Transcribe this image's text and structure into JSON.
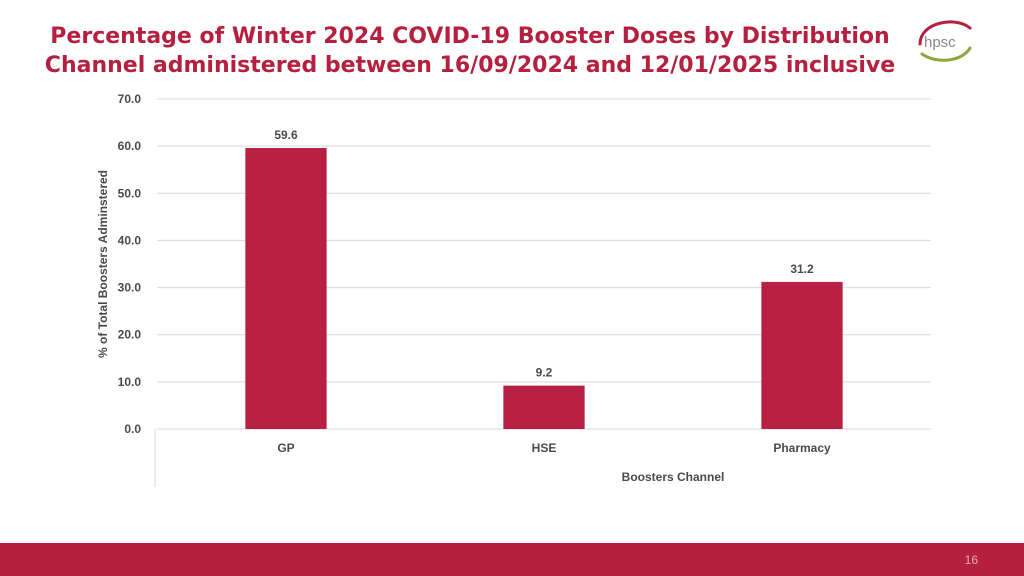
{
  "header": {
    "title_line1": "Percentage of Winter 2024 COVID-19 Booster Doses by Distribution",
    "title_line2": "Channel administered between 16/09/2024 and 12/01/2025 inclusive",
    "logo_text": "hpsc"
  },
  "footer": {
    "page_number": "16"
  },
  "colors": {
    "accent": "#b5203f",
    "bar": "#b71f43",
    "grid": "#d9d9d9",
    "text": "#4a4a4a"
  },
  "chart_data": {
    "type": "bar",
    "title": "Percentage of Winter 2024 COVID-19 Booster Doses by Distribution Channel administered between 16/09/2024 and 12/01/2025 inclusive",
    "categories": [
      "GP",
      "HSE",
      "Pharmacy"
    ],
    "values": [
      59.6,
      9.2,
      31.2
    ],
    "data_labels": [
      "59.6",
      "9.2",
      "31.2"
    ],
    "xlabel": "Boosters  Channel",
    "ylabel": "% of Total Boosters Adminstered",
    "ylim": [
      0,
      70
    ],
    "yticks": [
      "0.0",
      "10.0",
      "20.0",
      "30.0",
      "40.0",
      "50.0",
      "60.0",
      "70.0"
    ],
    "grid": true,
    "legend": "none"
  }
}
